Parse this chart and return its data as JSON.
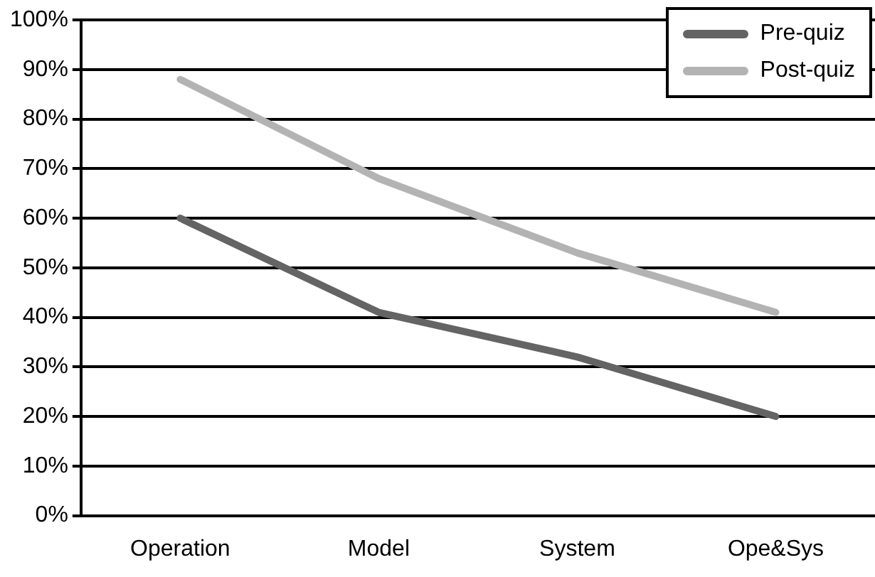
{
  "chart_data": {
    "type": "line",
    "categories": [
      "Operation",
      "Model",
      "System",
      "Ope&Sys"
    ],
    "series": [
      {
        "name": "Pre-quiz",
        "color": "#646464",
        "values": [
          60,
          41,
          32,
          20
        ]
      },
      {
        "name": "Post-quiz",
        "color": "#b3b3b3",
        "values": [
          88,
          68,
          53,
          41
        ]
      }
    ],
    "ylim": [
      0,
      100
    ],
    "yticks": [
      {
        "value": 0,
        "label": "0%"
      },
      {
        "value": 10,
        "label": "10%"
      },
      {
        "value": 20,
        "label": "20%"
      },
      {
        "value": 30,
        "label": "30%"
      },
      {
        "value": 40,
        "label": "40%"
      },
      {
        "value": 50,
        "label": "50%"
      },
      {
        "value": 60,
        "label": "60%"
      },
      {
        "value": 70,
        "label": "70%"
      },
      {
        "value": 80,
        "label": "80%"
      },
      {
        "value": 90,
        "label": "90%"
      },
      {
        "value": 100,
        "label": "100%"
      }
    ],
    "grid": "y",
    "legend": "top right",
    "marker": "none",
    "line_style": "solid"
  }
}
